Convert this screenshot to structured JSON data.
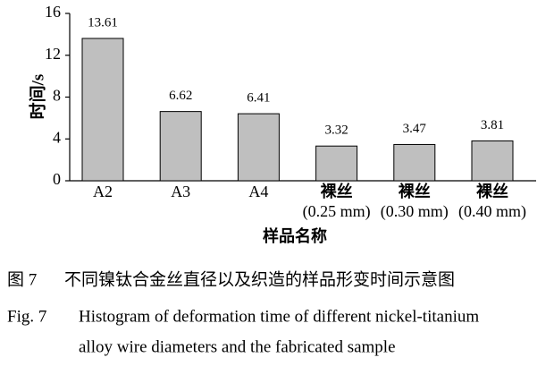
{
  "chart_data": {
    "type": "bar",
    "y_label": "时间/s",
    "x_label": "样品名称",
    "categories": [
      [
        "A2"
      ],
      [
        "A3"
      ],
      [
        "A4"
      ],
      [
        "裸丝",
        "(0.25 mm)"
      ],
      [
        "裸丝",
        "(0.30 mm)"
      ],
      [
        "裸丝",
        "(0.40 mm)"
      ]
    ],
    "values": [
      13.61,
      6.62,
      6.41,
      3.32,
      3.47,
      3.81
    ],
    "color": "#bfbfbf",
    "ylim": [
      0,
      16
    ],
    "yticks": [
      0,
      4,
      8,
      12,
      16
    ]
  },
  "caption": {
    "cn": [
      "图 7",
      "不同镍钛合金丝直径以及织造的样品形变时间示意图"
    ],
    "en": [
      "Fig. 7",
      "Histogram of deformation time of different nickel-titanium",
      "alloy wire diameters and the fabricated sample"
    ]
  }
}
